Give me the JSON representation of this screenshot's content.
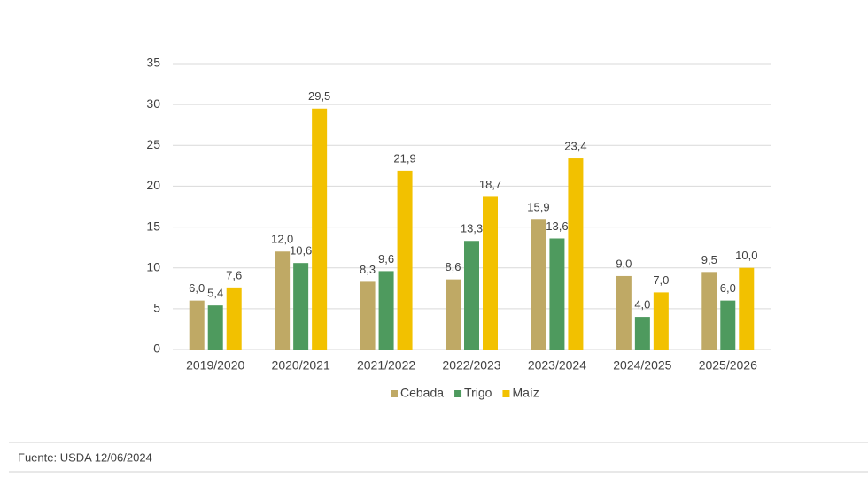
{
  "chart_data": {
    "type": "bar",
    "categories": [
      "2019/2020",
      "2020/2021",
      "2021/2022",
      "2022/2023",
      "2023/2024",
      "2024/2025",
      "2025/2026"
    ],
    "series": [
      {
        "name": "Cebada",
        "color": "#bfa965",
        "values": [
          6.0,
          12.0,
          8.3,
          8.6,
          15.9,
          9.0,
          9.5
        ],
        "value_labels": [
          "6,0",
          "12,0",
          "8,3",
          "8,6",
          "15,9",
          "9,0",
          "9,5"
        ]
      },
      {
        "name": "Trigo",
        "color": "#4e9a5e",
        "values": [
          5.4,
          10.6,
          9.6,
          13.3,
          13.6,
          4.0,
          6.0
        ],
        "value_labels": [
          "5,4",
          "10,6",
          "9,6",
          "13,3",
          "13,6",
          "4,0",
          "6,0"
        ]
      },
      {
        "name": "Maíz",
        "color": "#f2c100",
        "values": [
          7.6,
          29.5,
          21.9,
          18.7,
          23.4,
          7.0,
          10.0
        ],
        "value_labels": [
          "7,6",
          "29,5",
          "21,9",
          "18,7",
          "23,4",
          "7,0",
          "10,0"
        ]
      }
    ],
    "ylim": [
      0,
      35
    ],
    "yticks": [
      0,
      5,
      10,
      15,
      20,
      25,
      30,
      35
    ],
    "grid": true,
    "legend": "bottom",
    "source": "Fuente: USDA 12/06/2024"
  }
}
